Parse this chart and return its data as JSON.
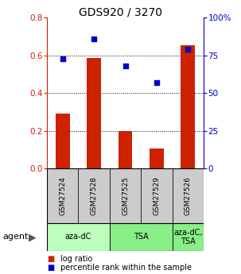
{
  "title": "GDS920 / 3270",
  "samples": [
    "GSM27524",
    "GSM27528",
    "GSM27525",
    "GSM27529",
    "GSM27526"
  ],
  "log_ratio": [
    0.29,
    0.585,
    0.2,
    0.105,
    0.655
  ],
  "percentile_rank": [
    73,
    86,
    68,
    57,
    79
  ],
  "bar_color": "#cc2200",
  "dot_color": "#0000cc",
  "ylim_left": [
    0,
    0.8
  ],
  "ylim_right": [
    0,
    100
  ],
  "yticks_left": [
    0,
    0.2,
    0.4,
    0.6,
    0.8
  ],
  "yticks_right": [
    0,
    25,
    50,
    75,
    100
  ],
  "yticklabels_right": [
    "0",
    "25",
    "50",
    "75",
    "100%"
  ],
  "groups": [
    {
      "label": "aza-dC",
      "samples": [
        0,
        1
      ],
      "color": "#bbffbb"
    },
    {
      "label": "TSA",
      "samples": [
        2,
        3
      ],
      "color": "#88ee88"
    },
    {
      "label": "aza-dC,\nTSA",
      "samples": [
        4
      ],
      "color": "#88ee88"
    }
  ],
  "legend_bar_label": "log ratio",
  "legend_dot_label": "percentile rank within the sample",
  "bar_width": 0.45,
  "sample_box_color": "#cccccc",
  "grid_lines": [
    0.2,
    0.4,
    0.6
  ]
}
